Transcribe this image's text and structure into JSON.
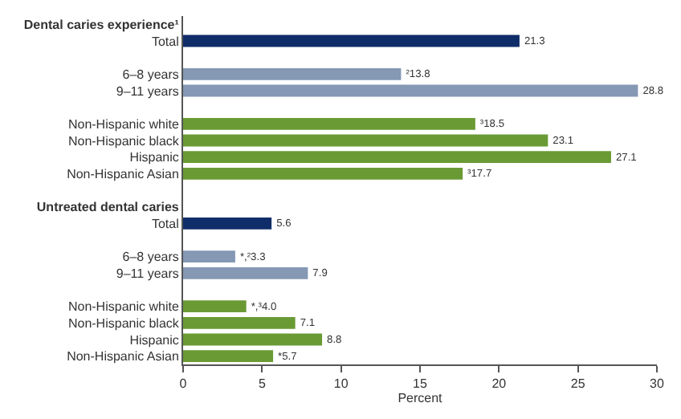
{
  "chart_data": {
    "type": "bar",
    "orientation": "horizontal",
    "xlabel": "Percent",
    "categories": [
      "Dental caries experience¹",
      "Total",
      null,
      "6–8 years",
      "9–11 years",
      null,
      "Non-Hispanic white",
      "Non-Hispanic black",
      "Hispanic",
      "Non-Hispanic Asian",
      null,
      "Untreated dental caries",
      "Total",
      null,
      "6–8 years",
      "9–11 years",
      null,
      "Non-Hispanic white",
      "Non-Hispanic black",
      "Hispanic",
      "Non-Hispanic Asian"
    ],
    "values": [
      null,
      21.3,
      null,
      13.8,
      28.8,
      null,
      18.5,
      23.1,
      27.1,
      17.7,
      null,
      null,
      5.6,
      null,
      3.3,
      7.9,
      null,
      4.0,
      7.1,
      8.8,
      5.7
    ],
    "value_labels": [
      null,
      "21.3",
      null,
      "²13.8",
      "28.8",
      null,
      "³18.5",
      "23.1",
      "27.1",
      "³17.7",
      null,
      null,
      "5.6",
      null,
      "*,²3.3",
      "7.9",
      null,
      "*,³4.0",
      "7.1",
      "8.8",
      "*5.7"
    ],
    "colors": [
      null,
      "#0f2d69",
      null,
      "#8598b4",
      "#8598b4",
      null,
      "#6a9a34",
      "#6a9a34",
      "#6a9a34",
      "#6a9a34",
      null,
      null,
      "#0f2d69",
      null,
      "#8598b4",
      "#8598b4",
      null,
      "#6a9a34",
      "#6a9a34",
      "#6a9a34",
      "#6a9a34"
    ],
    "xlim": [
      0,
      30
    ],
    "xticks": [
      0,
      5,
      10,
      15,
      20,
      25,
      30
    ]
  }
}
